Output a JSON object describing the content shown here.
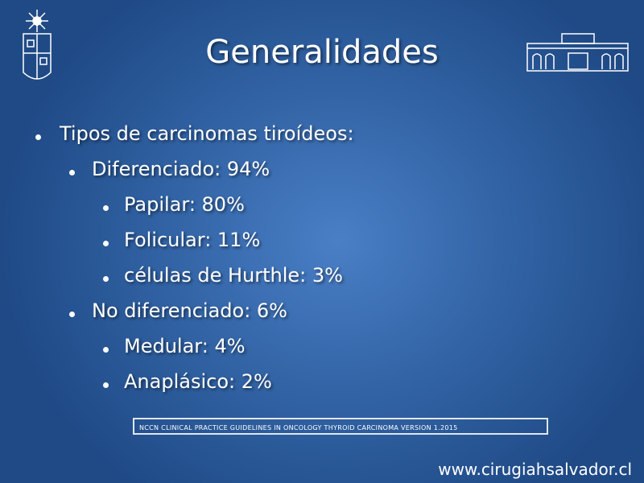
{
  "header": {
    "title": "Generalidades"
  },
  "bullets": [
    {
      "text": "Tipos de carcinomas tiroídeos:",
      "children": [
        {
          "text": "Diferenciado: 94%",
          "children": [
            {
              "text": "Papilar: 80%"
            },
            {
              "text": "Folicular: 11%"
            },
            {
              "text": "células de Hurthle: 3%"
            }
          ]
        },
        {
          "text": "No diferenciado: 6%",
          "children": [
            {
              "text": "Medular: 4%"
            },
            {
              "text": "Anaplásico: 2%"
            }
          ]
        }
      ]
    }
  ],
  "reference": "NCCN CLINICAL PRACTICE GUIDELINES IN ONCOLOGY THYROID CARCINOMA VERSION 1.2015",
  "footer": "www.cirugiahsalvador.cl"
}
